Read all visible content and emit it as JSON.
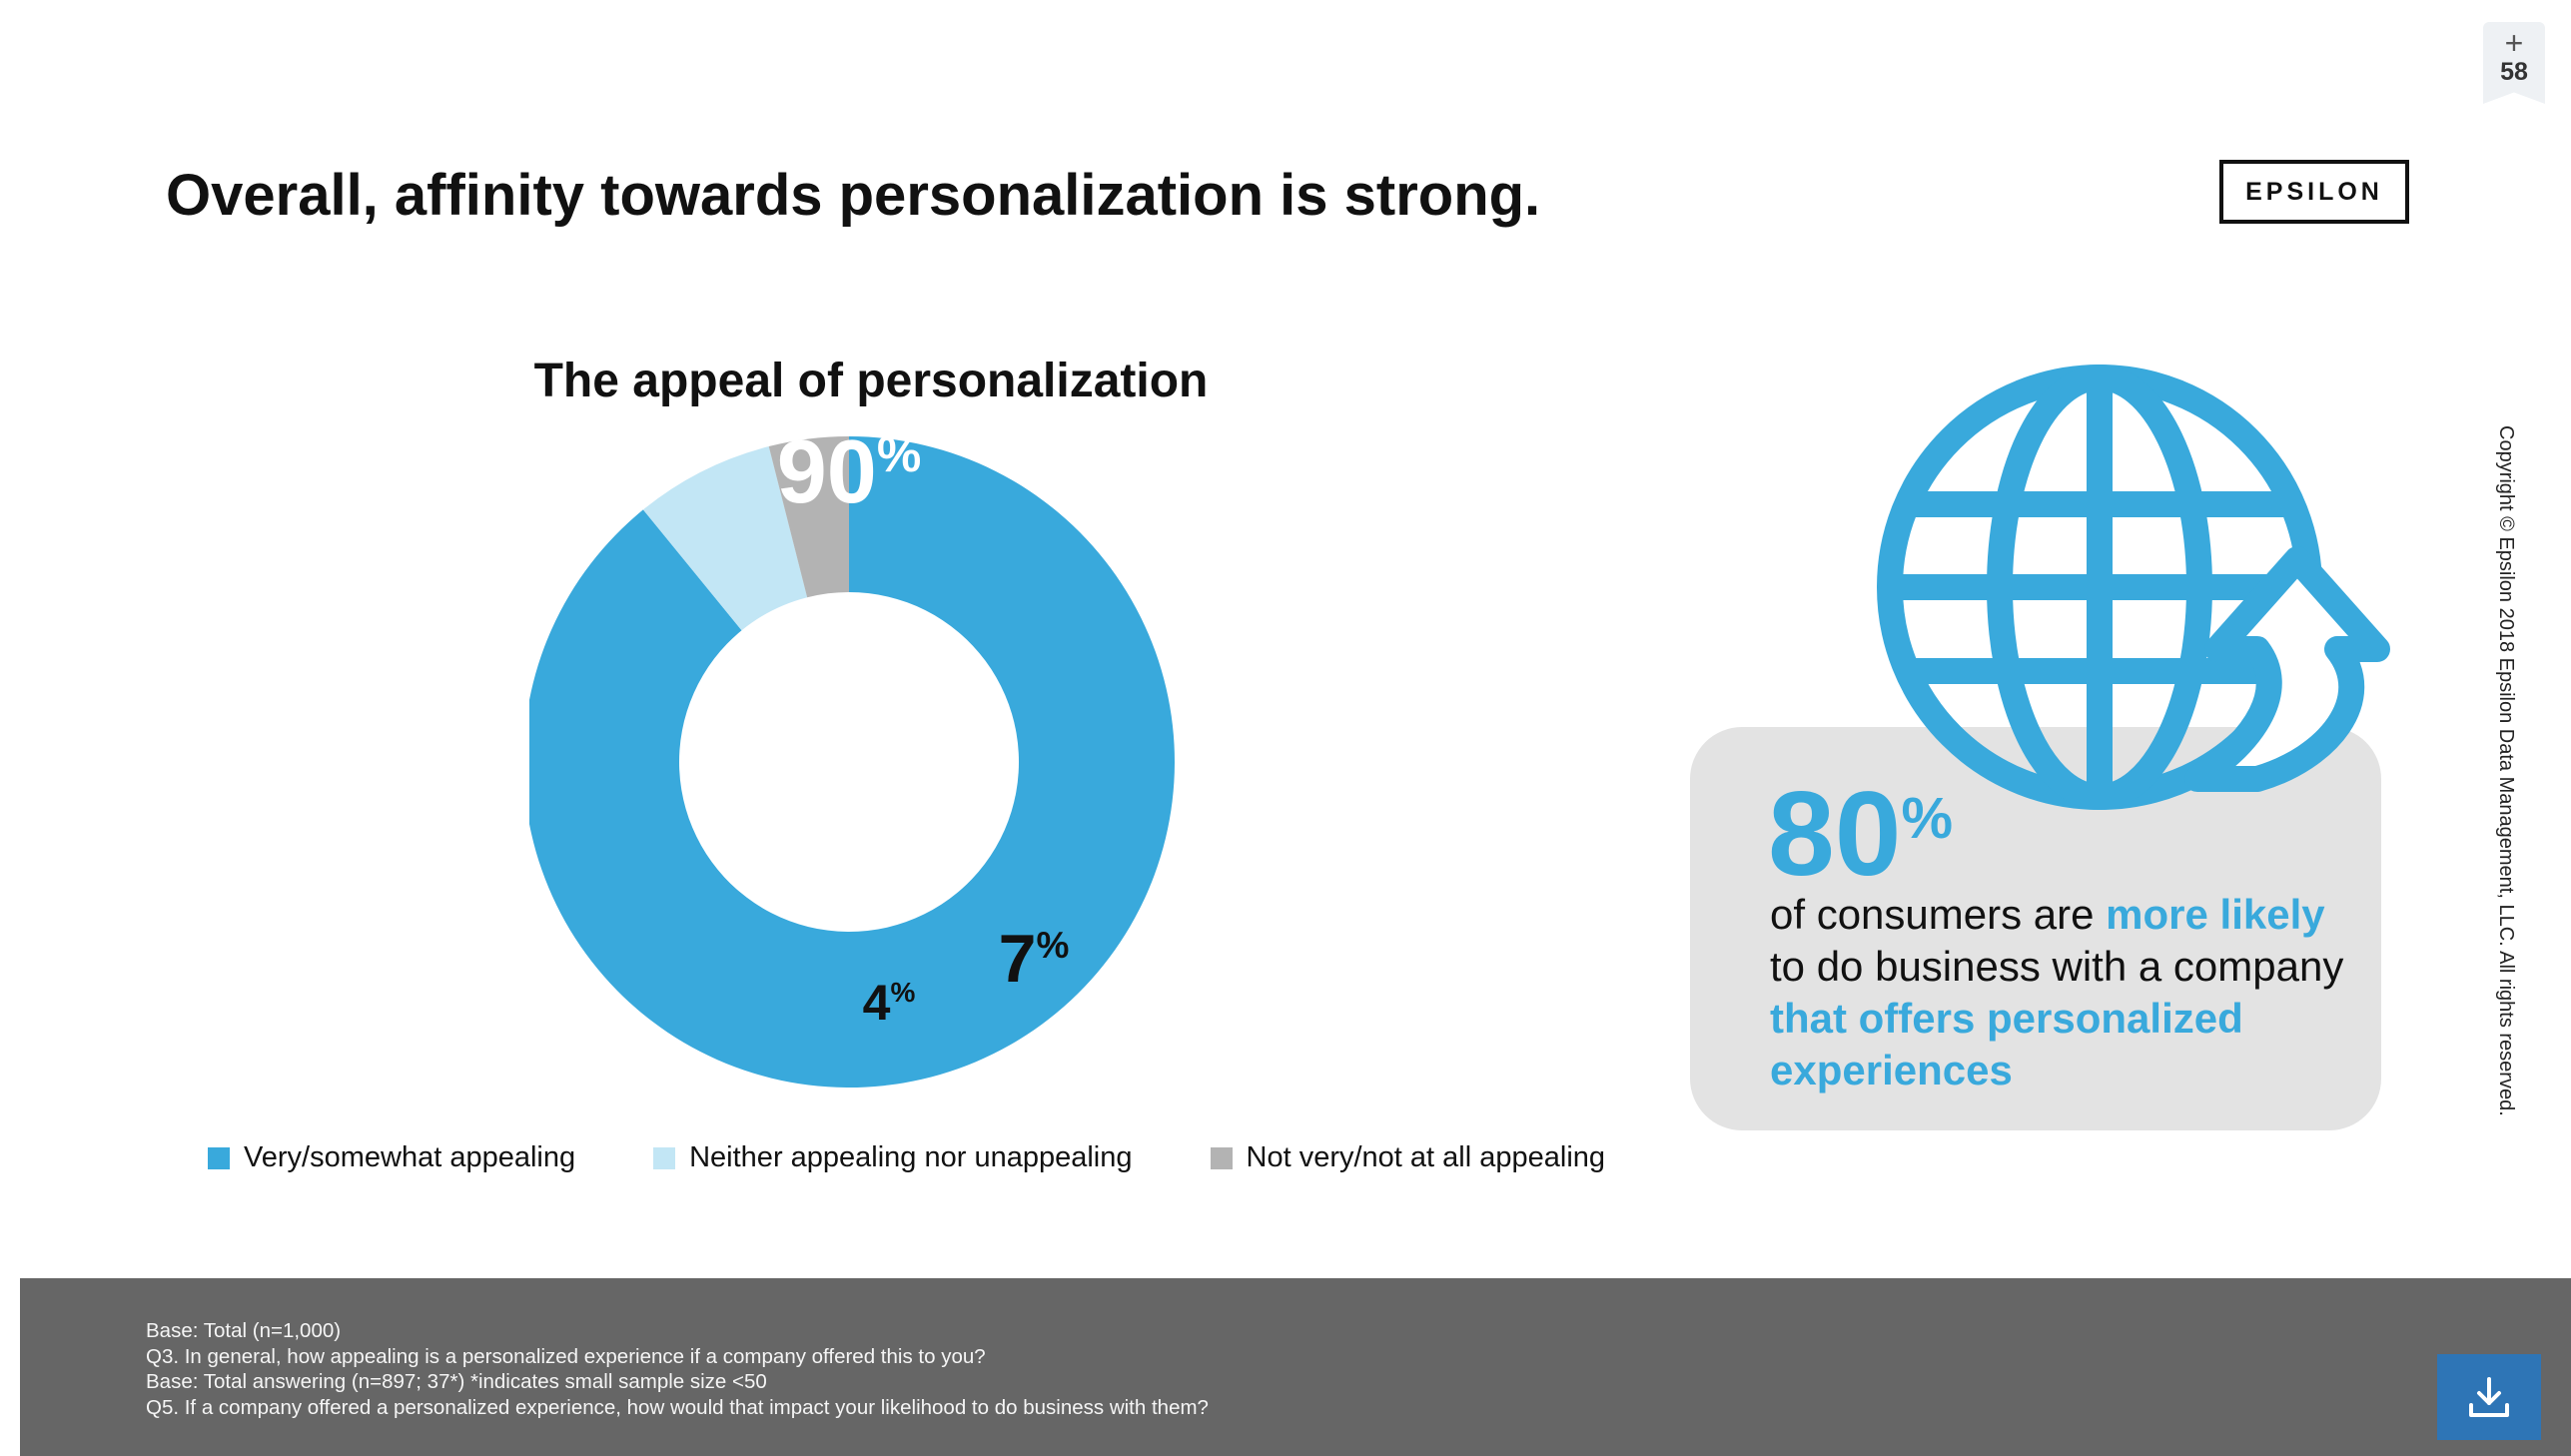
{
  "slide": {
    "title": "Overall, affinity towards personalization is strong.",
    "logo": "EPSILON",
    "page_number": "58",
    "add_icon": "plus-icon"
  },
  "chart_data": {
    "type": "pie",
    "title": "The appeal of personalization",
    "categories": [
      "Very/somewhat appealing",
      "Neither appealing nor unappealing",
      "Not very/not at all appealing"
    ],
    "values": [
      90,
      7,
      4
    ],
    "unit": "%",
    "colors": [
      "#39a9dc",
      "#c2e6f5",
      "#b3b3b3"
    ],
    "legend_position": "bottom",
    "data_labels": [
      "90",
      "7",
      "4"
    ]
  },
  "callout": {
    "stat_value": "80",
    "stat_unit": "%",
    "line1_plain": "of consumers are ",
    "line1_highlight": "more likely",
    "line2_plain": " to do business with a company ",
    "line2_highlight": "that offers personalized experiences",
    "icon": "globe-arrow-icon",
    "accent_color": "#39a9dc"
  },
  "copyright": "Copyright © Epsilon 2018 Epsilon Data Management, LLC. All rights reserved.",
  "footnotes": [
    "Base: Total (n=1,000)",
    "Q3. In general, how appealing is a personalized experience if a company offered this to you?",
    "Base: Total answering  (n=897; 37*) *indicates small sample size <50",
    "Q5. If a company offered a personalized experience, how would that impact your likelihood to do business with them?"
  ],
  "download_button": "download-icon"
}
